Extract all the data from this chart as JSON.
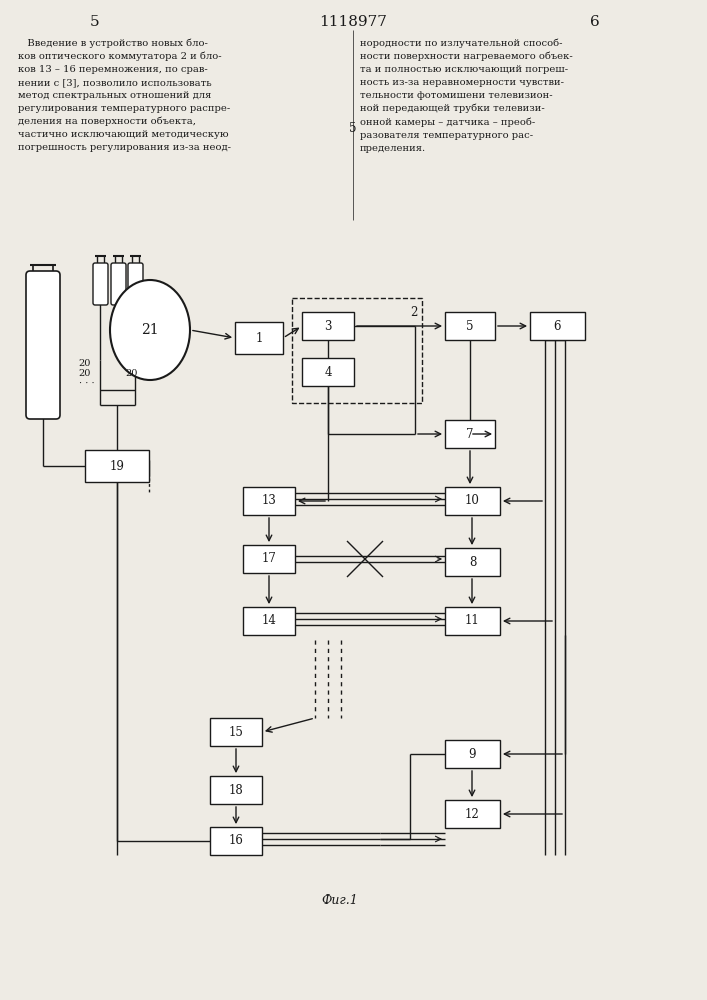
{
  "title": "1118977",
  "page_left": "5",
  "page_right": "6",
  "fig_label": "Фиг.1",
  "text_left": "   Введение в устройство новых бло-\nков оптического коммутатора 2 и бло-\nков 13 – 16 перемножения, по срав-\nнении с [3], позволило использовать\nметод спектральных отношений для\nрегулирования температурного распре-\nделения на поверхности объекта,\nчастично исключающий методическую\nпогрешность регулирования из-за неод-",
  "text_right": "нородности по излучательной способ-\nности поверхности нагреваемого объек-\nта и полностью исключающий погреш-\nность из-за неравномерности чувстви-\nтельности фотомишени телевизион-\nной передающей трубки телевизи-\nонной камеры – датчика – преоб-\nразователя температурного рас-\nпределения.",
  "bg_color": "#eeebe4",
  "line_color": "#1a1a1a",
  "box_color": "#ffffff"
}
